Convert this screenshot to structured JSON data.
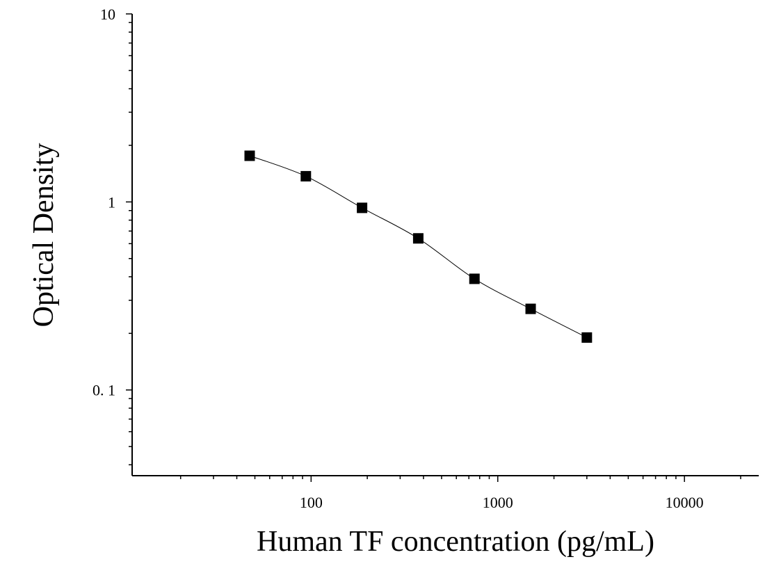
{
  "chart_data": {
    "type": "scatter",
    "title": "",
    "xlabel": "Human TF concentration (pg/mL)",
    "ylabel": "Optical Density",
    "xscale": "log",
    "yscale": "log",
    "xlim": [
      11,
      25000
    ],
    "ylim": [
      0.035,
      10
    ],
    "x_ticks": [
      100,
      1000,
      10000
    ],
    "x_tick_labels": [
      "100",
      "1000",
      "10000"
    ],
    "y_ticks": [
      0.1,
      1,
      10
    ],
    "y_tick_labels": [
      "0. 1",
      "1",
      "10"
    ],
    "grid": false,
    "legend": "none",
    "marker": "square",
    "color": "#000000",
    "series": [
      {
        "x": [
          46.875,
          93.75,
          187.5,
          375,
          750,
          1500,
          3000
        ],
        "y": [
          1.76,
          1.37,
          0.93,
          0.64,
          0.39,
          0.27,
          0.19
        ]
      }
    ]
  }
}
